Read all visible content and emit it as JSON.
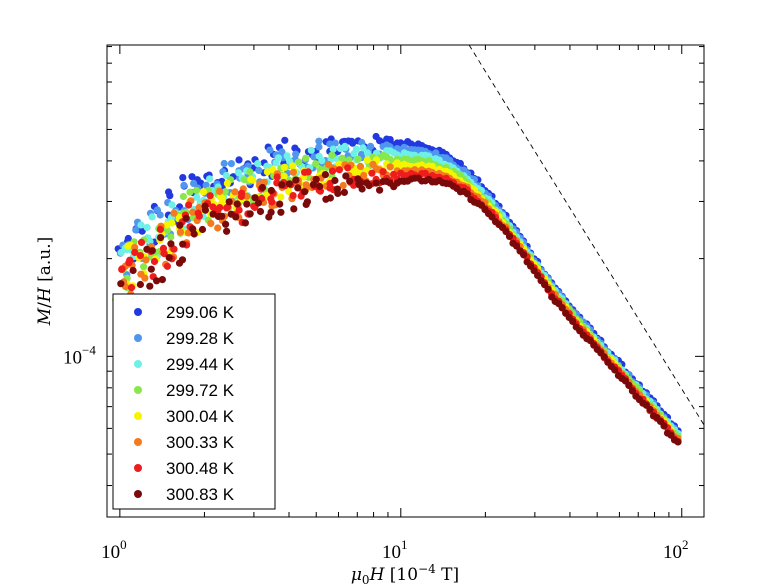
{
  "chart_data": {
    "type": "scatter",
    "title": "",
    "xlabel": "μ0H [10^-4 T]",
    "ylabel": "M/H [a.u.]",
    "xscale": "log",
    "yscale": "log",
    "xlim": [
      0.9,
      120
    ],
    "ylim": [
      3.2e-05,
      0.00091
    ],
    "x_ticks": [
      {
        "base": "10",
        "exp": "0",
        "value": 1
      },
      {
        "base": "10",
        "exp": "1",
        "value": 10
      },
      {
        "base": "10",
        "exp": "2",
        "value": 100
      }
    ],
    "y_ticks": [
      {
        "base": "10",
        "exp": "−4",
        "value": 0.0001
      }
    ],
    "legend_position": "bottom-left",
    "grid": false,
    "series": [
      {
        "name": "299.06 K",
        "color": "#2238e0",
        "peak": 0.00045,
        "xpk": 7.5,
        "low": 0.000205,
        "offset": 1.06
      },
      {
        "name": "299.28 K",
        "color": "#4f96ee",
        "peak": 0.000432,
        "xpk": 7.6,
        "low": 0.000198,
        "offset": 1.045
      },
      {
        "name": "299.44 K",
        "color": "#6ff0e6",
        "peak": 0.000412,
        "xpk": 7.7,
        "low": 0.00019,
        "offset": 1.03
      },
      {
        "name": "299.72 K",
        "color": "#88e84a",
        "peak": 0.000396,
        "xpk": 7.8,
        "low": 0.000183,
        "offset": 1.018
      },
      {
        "name": "300.04 K",
        "color": "#f5f500",
        "peak": 0.000381,
        "xpk": 7.9,
        "low": 0.000177,
        "offset": 1.006
      },
      {
        "name": "300.33 K",
        "color": "#f57a1e",
        "peak": 0.000367,
        "xpk": 8.0,
        "low": 0.000171,
        "offset": 0.995
      },
      {
        "name": "300.48 K",
        "color": "#ee1c1c",
        "peak": 0.000356,
        "xpk": 8.1,
        "low": 0.000166,
        "offset": 0.985
      },
      {
        "name": "300.83 K",
        "color": "#7a0a0a",
        "peak": 0.000342,
        "xpk": 8.2,
        "low": 0.000152,
        "offset": 0.972
      }
    ],
    "reference_line": {
      "style": "dashed",
      "x": [
        17.5,
        120
      ],
      "y": [
        0.00091,
        6.15e-05
      ]
    },
    "high_field_endpoint": {
      "x": 97,
      "y": 5.55e-05
    }
  }
}
